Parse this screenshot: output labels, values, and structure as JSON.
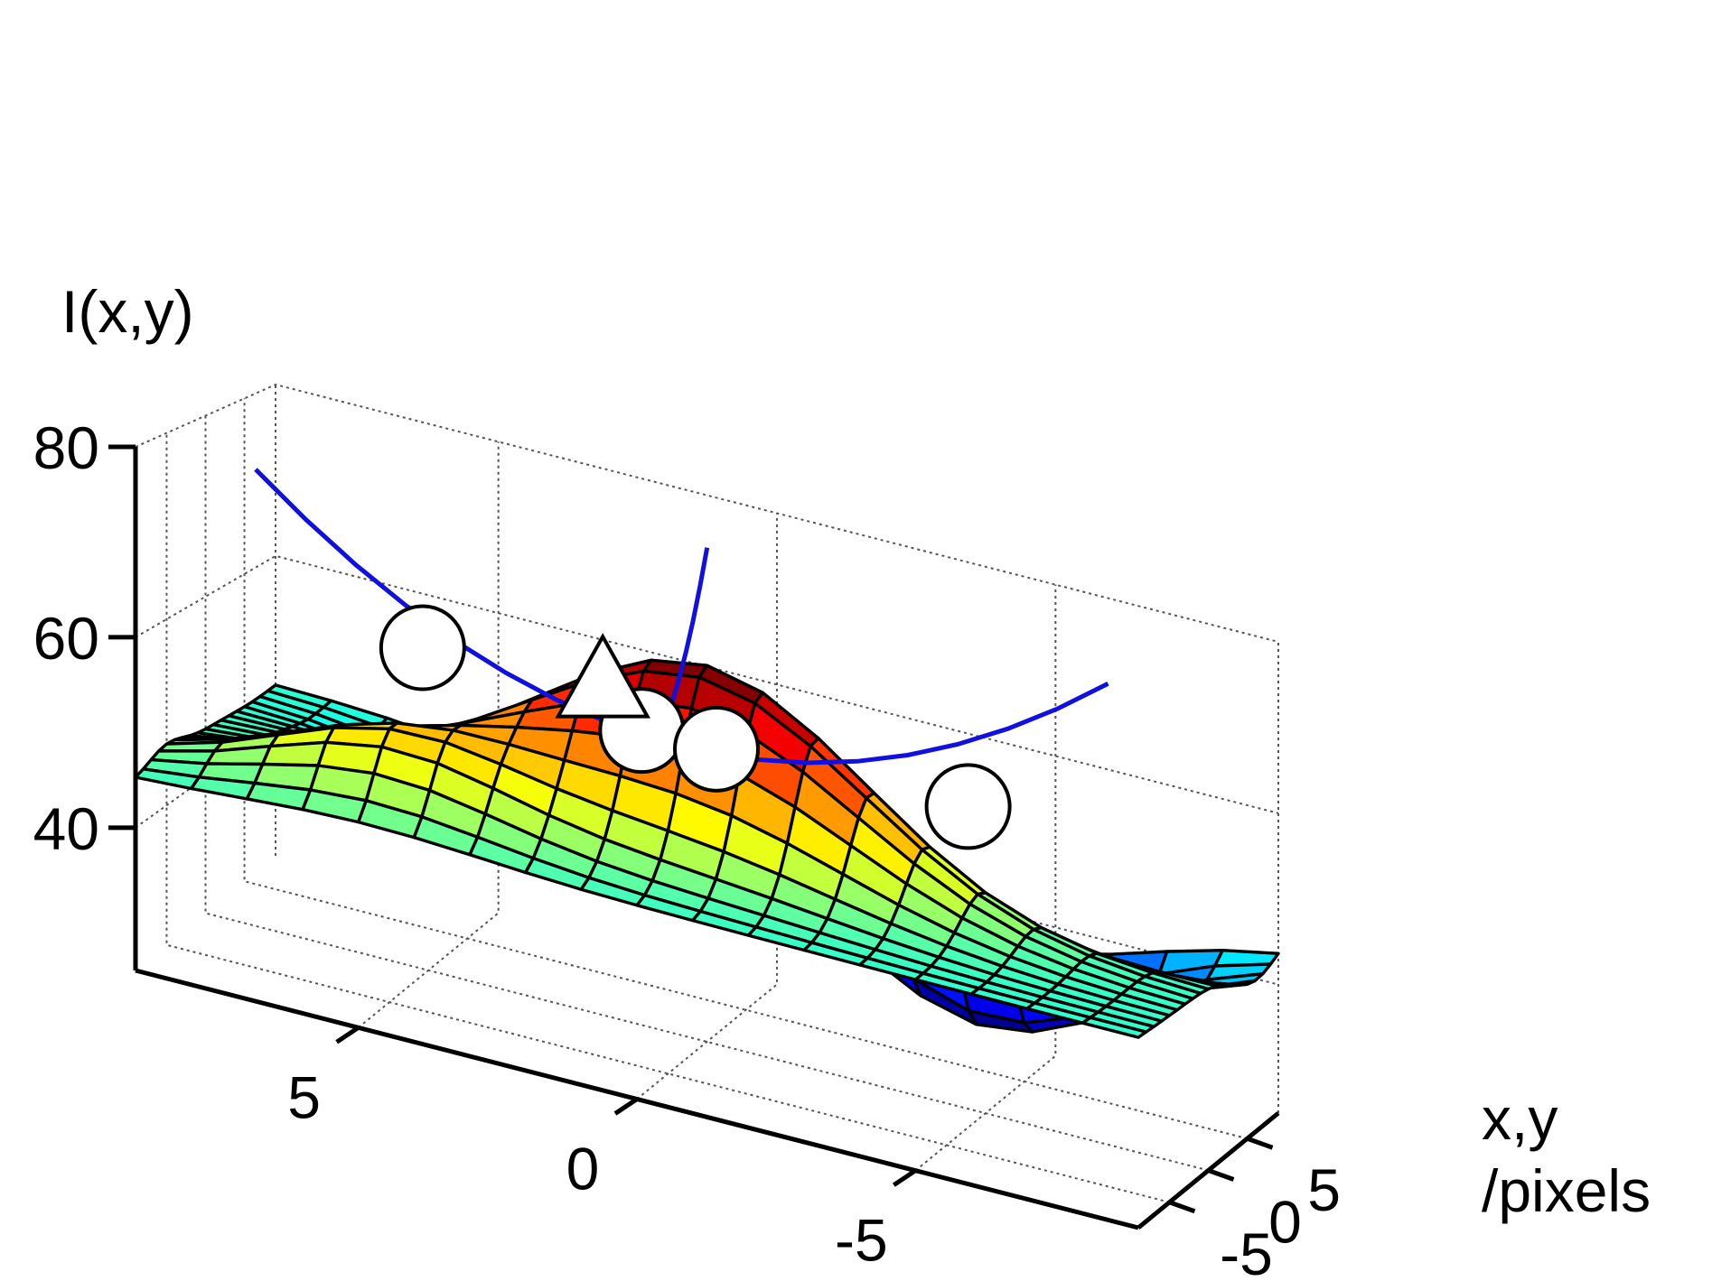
{
  "chart_data": {
    "type": "surface",
    "title": "",
    "zlabel": "I(x,y)",
    "xylabel_line1": "x,y",
    "xylabel_line2": "/pixels",
    "x_range": [
      -9,
      9
    ],
    "y_range": [
      -9,
      9
    ],
    "z_range": [
      25,
      80
    ],
    "z_ticks": [
      {
        "value": 40,
        "label": "40"
      },
      {
        "value": 60,
        "label": "60"
      },
      {
        "value": 80,
        "label": "80"
      }
    ],
    "x_ticks": [
      {
        "value": 5,
        "label": "5"
      },
      {
        "value": 0,
        "label": "0"
      },
      {
        "value": -5,
        "label": "-5"
      }
    ],
    "y_ticks": [
      {
        "value": -5,
        "label": "-5"
      },
      {
        "value": 0,
        "label": "0"
      },
      {
        "value": 5,
        "label": "5"
      }
    ],
    "grid": true,
    "colormap": "jet",
    "grid_size": 19,
    "surface": {
      "baseline": 45,
      "peaks": [
        {
          "x": 0,
          "y": 0,
          "height": 22,
          "sigma": 3.0
        },
        {
          "x": 5,
          "y": -5,
          "height": 8,
          "sigma": 2.2
        }
      ],
      "valleys": [
        {
          "x": -4,
          "y": 6,
          "depth": 17,
          "sigma": 2.6
        },
        {
          "x": 3,
          "y": 6,
          "depth": 8,
          "sigma": 2.2
        }
      ]
    },
    "markers": [
      {
        "type": "circle",
        "x": 0.5,
        "y": -4.8,
        "z": 61
      },
      {
        "type": "circle",
        "x": -4.8,
        "y": -0.8,
        "z": 59
      },
      {
        "type": "circle",
        "x": 5.2,
        "y": 0.7,
        "z": 60
      },
      {
        "type": "circle",
        "x": 0.5,
        "y": 4.8,
        "z": 54
      },
      {
        "type": "triangle",
        "x": 1.8,
        "y": -0.5,
        "z": 62
      }
    ],
    "marker_color": "#ffffff",
    "fit_curve_color": "#1010e0"
  }
}
